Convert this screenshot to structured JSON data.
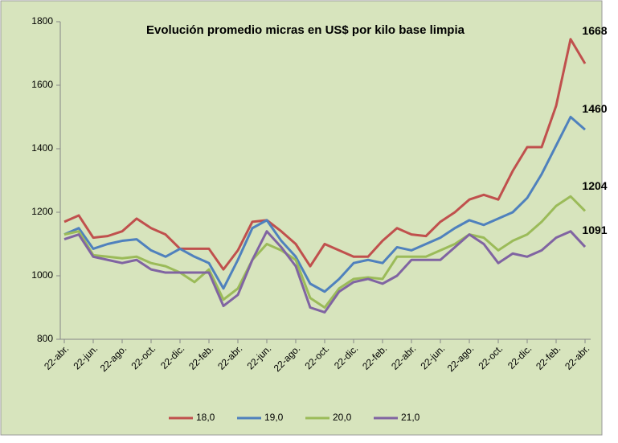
{
  "chart_data": {
    "type": "line",
    "title": "Evolución promedio micras en US$ por kilo base limpia",
    "categories": [
      "22-abr.",
      null,
      "22-jun.",
      null,
      "22-ago.",
      null,
      "22-oct.",
      null,
      "22-dic.",
      null,
      "22-feb.",
      null,
      "22-abr.",
      null,
      "22-jun.",
      null,
      "22-ago.",
      null,
      "22-oct.",
      null,
      "22-dic.",
      null,
      "22-feb.",
      null,
      "22-abr.",
      null,
      "22-jun.",
      null,
      "22-ago.",
      null,
      "22-oct.",
      null,
      "22-dic.",
      null,
      "22-feb.",
      null,
      "22-abr."
    ],
    "series": [
      {
        "name": "18,0",
        "color": "#c0504d",
        "values": [
          1170,
          1190,
          1120,
          1125,
          1140,
          1180,
          1150,
          1130,
          1085,
          1085,
          1085,
          1020,
          1080,
          1170,
          1175,
          1140,
          1100,
          1030,
          1100,
          1080,
          1060,
          1060,
          1110,
          1150,
          1130,
          1125,
          1170,
          1200,
          1240,
          1255,
          1240,
          1330,
          1405,
          1405,
          1535,
          1745,
          1668
        ]
      },
      {
        "name": "19,0",
        "color": "#4f81bd",
        "values": [
          1130,
          1150,
          1085,
          1100,
          1110,
          1115,
          1080,
          1060,
          1085,
          1060,
          1040,
          960,
          1050,
          1150,
          1175,
          1110,
          1060,
          975,
          950,
          990,
          1040,
          1050,
          1040,
          1090,
          1080,
          1100,
          1120,
          1150,
          1175,
          1160,
          1180,
          1200,
          1245,
          1320,
          1410,
          1500,
          1460
        ]
      },
      {
        "name": "20,0",
        "color": "#9bbb59",
        "values": [
          1130,
          1140,
          1065,
          1060,
          1055,
          1060,
          1040,
          1030,
          1010,
          980,
          1020,
          925,
          960,
          1050,
          1100,
          1080,
          1050,
          930,
          900,
          960,
          990,
          995,
          990,
          1060,
          1060,
          1060,
          1080,
          1100,
          1130,
          1120,
          1080,
          1110,
          1130,
          1170,
          1220,
          1250,
          1204
        ]
      },
      {
        "name": "21,0",
        "color": "#8064a2",
        "values": [
          1115,
          1130,
          1060,
          1050,
          1040,
          1050,
          1020,
          1010,
          1010,
          1010,
          1010,
          905,
          940,
          1050,
          1140,
          1090,
          1030,
          900,
          885,
          950,
          980,
          990,
          975,
          1000,
          1050,
          1050,
          1050,
          1090,
          1130,
          1100,
          1040,
          1070,
          1060,
          1080,
          1120,
          1140,
          1091
        ]
      }
    ],
    "annotations": [
      {
        "text": "1668",
        "color": "#c00000"
      },
      {
        "text": "1460",
        "color": "#558ed5"
      },
      {
        "text": "1204",
        "color": "#77933c"
      },
      {
        "text": "1091",
        "color": "#7030a0"
      }
    ],
    "ylim": [
      800,
      1800
    ],
    "yticks": [
      800,
      1000,
      1200,
      1400,
      1600,
      1800
    ],
    "background": "#d7e4bd",
    "legend": "bottom"
  }
}
